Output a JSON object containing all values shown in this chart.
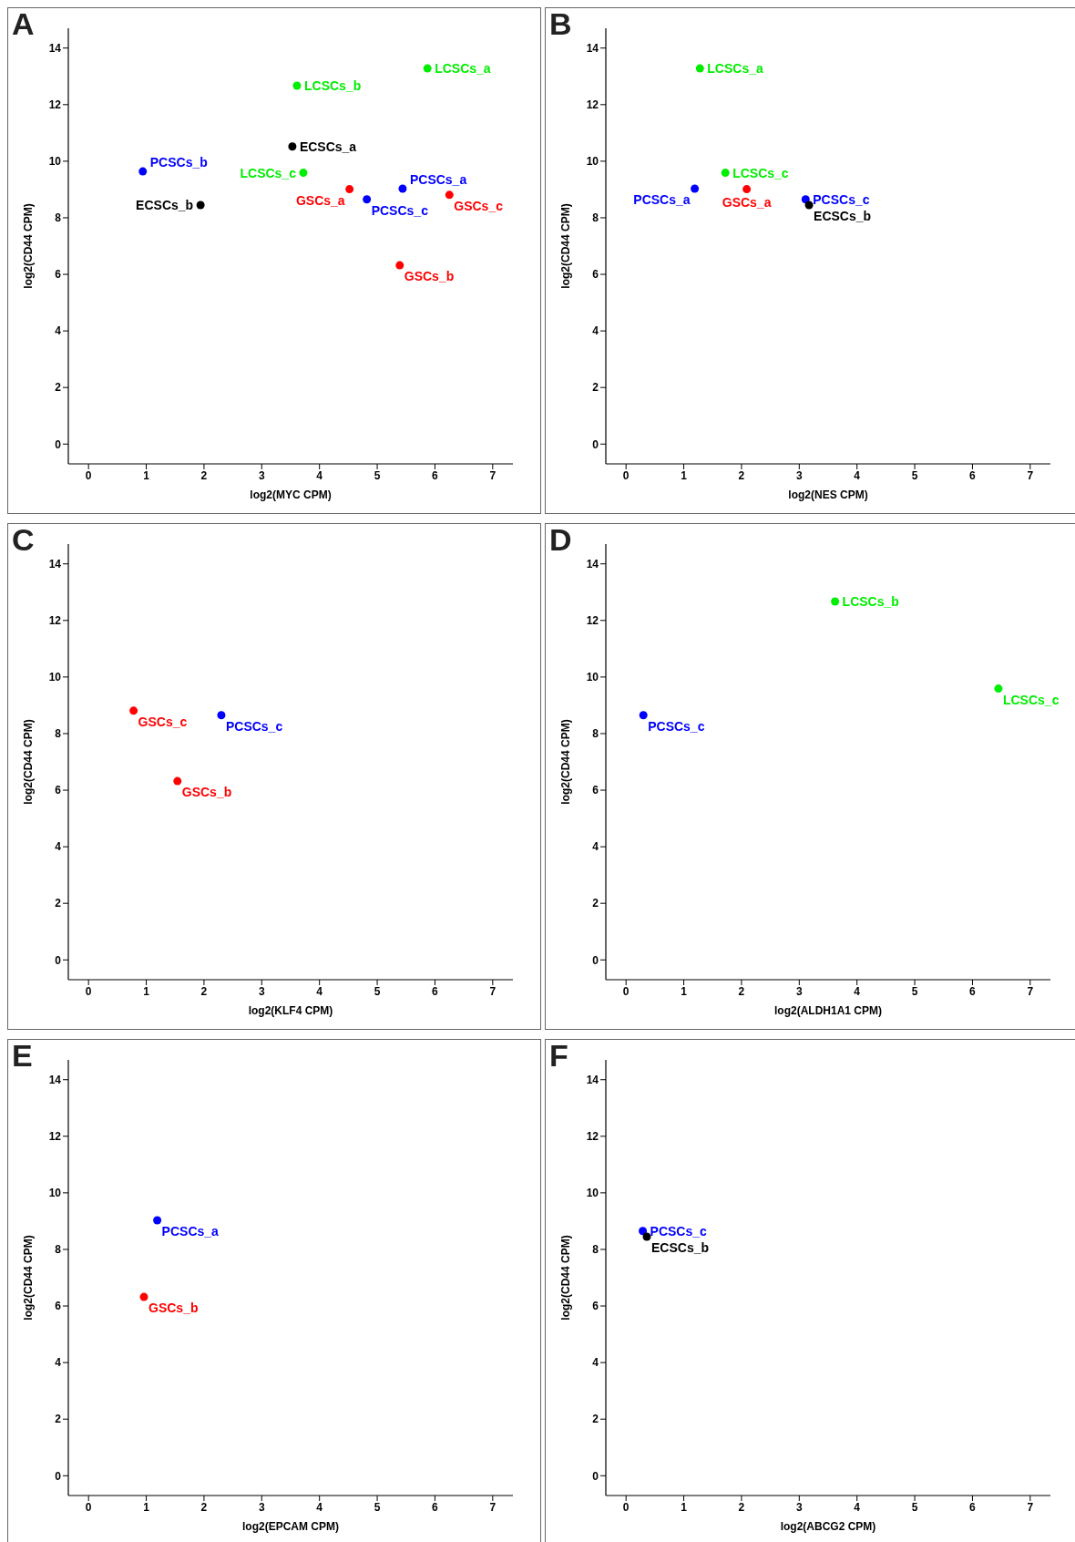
{
  "chart_data": [
    {
      "type": "scatter",
      "title": "A",
      "xlabel": "log2(MYC CPM)",
      "ylabel": "log2(CD44 CPM)",
      "xlim": [
        -0.35,
        7.35
      ],
      "ylim": [
        -0.7,
        14.7
      ],
      "xticks": [
        0,
        1,
        2,
        3,
        4,
        5,
        6,
        7
      ],
      "yticks": [
        0,
        2,
        4,
        6,
        8,
        10,
        12,
        14
      ],
      "marker": "circle",
      "series": [
        {
          "name": "LCSCs_a",
          "color": "#00ee00",
          "x": [
            5.87
          ],
          "values": [
            13.28
          ]
        },
        {
          "name": "LCSCs_b",
          "color": "#00ee00",
          "x": [
            3.61
          ],
          "values": [
            12.67
          ]
        },
        {
          "name": "ECSCs_a",
          "color": "#000000",
          "x": [
            3.53
          ],
          "values": [
            10.52
          ]
        },
        {
          "name": "PCSCs_b",
          "color": "#0000ff",
          "x": [
            0.94
          ],
          "values": [
            9.64
          ]
        },
        {
          "name": "LCSCs_c",
          "color": "#00ee00",
          "x": [
            3.72
          ],
          "values": [
            9.59
          ]
        },
        {
          "name": "GSCs_a",
          "color": "#ff0000",
          "x": [
            4.52
          ],
          "values": [
            9.01
          ]
        },
        {
          "name": "PCSCs_a",
          "color": "#0000ff",
          "x": [
            5.44
          ],
          "values": [
            9.03
          ]
        },
        {
          "name": "PCSCs_c",
          "color": "#0000ff",
          "x": [
            4.82
          ],
          "values": [
            8.65
          ]
        },
        {
          "name": "GSCs_c",
          "color": "#ff0000",
          "x": [
            6.25
          ],
          "values": [
            8.81
          ]
        },
        {
          "name": "ECSCs_b",
          "color": "#000000",
          "x": [
            1.94
          ],
          "values": [
            8.45
          ]
        },
        {
          "name": "GSCs_b",
          "color": "#ff0000",
          "x": [
            5.39
          ],
          "values": [
            6.32
          ]
        }
      ]
    },
    {
      "type": "scatter",
      "title": "B",
      "xlabel": "log2(NES CPM)",
      "ylabel": "log2(CD44 CPM)",
      "xlim": [
        -0.35,
        7.35
      ],
      "ylim": [
        -0.7,
        14.7
      ],
      "xticks": [
        0,
        1,
        2,
        3,
        4,
        5,
        6,
        7
      ],
      "yticks": [
        0,
        2,
        4,
        6,
        8,
        10,
        12,
        14
      ],
      "marker": "circle",
      "series": [
        {
          "name": "LCSCs_a",
          "color": "#00ee00",
          "x": [
            1.28
          ],
          "values": [
            13.28
          ]
        },
        {
          "name": "LCSCs_c",
          "color": "#00ee00",
          "x": [
            1.72
          ],
          "values": [
            9.59
          ]
        },
        {
          "name": "PCSCs_a",
          "color": "#0000ff",
          "x": [
            1.19
          ],
          "values": [
            9.03
          ]
        },
        {
          "name": "GSCs_a",
          "color": "#ff0000",
          "x": [
            2.09
          ],
          "values": [
            9.01
          ]
        },
        {
          "name": "PCSCs_c",
          "color": "#0000ff",
          "x": [
            3.11
          ],
          "values": [
            8.65
          ]
        },
        {
          "name": "ECSCs_b",
          "color": "#000000",
          "x": [
            3.17
          ],
          "values": [
            8.45
          ]
        }
      ]
    },
    {
      "type": "scatter",
      "title": "C",
      "xlabel": "log2(KLF4 CPM)",
      "ylabel": "log2(CD44 CPM)",
      "xlim": [
        -0.35,
        7.35
      ],
      "ylim": [
        -0.7,
        14.7
      ],
      "xticks": [
        0,
        1,
        2,
        3,
        4,
        5,
        6,
        7
      ],
      "yticks": [
        0,
        2,
        4,
        6,
        8,
        10,
        12,
        14
      ],
      "marker": "circle",
      "series": [
        {
          "name": "GSCs_c",
          "color": "#ff0000",
          "x": [
            0.78
          ],
          "values": [
            8.81
          ]
        },
        {
          "name": "PCSCs_c",
          "color": "#0000ff",
          "x": [
            2.3
          ],
          "values": [
            8.65
          ]
        },
        {
          "name": "GSCs_b",
          "color": "#ff0000",
          "x": [
            1.54
          ],
          "values": [
            6.32
          ]
        }
      ]
    },
    {
      "type": "scatter",
      "title": "D",
      "xlabel": "log2(ALDH1A1 CPM)",
      "ylabel": "log2(CD44 CPM)",
      "xlim": [
        -0.35,
        7.35
      ],
      "ylim": [
        -0.7,
        14.7
      ],
      "xticks": [
        0,
        1,
        2,
        3,
        4,
        5,
        6,
        7
      ],
      "yticks": [
        0,
        2,
        4,
        6,
        8,
        10,
        12,
        14
      ],
      "marker": "circle",
      "series": [
        {
          "name": "PCSCs_c",
          "color": "#0000ff",
          "x": [
            0.3
          ],
          "values": [
            8.65
          ]
        },
        {
          "name": "LCSCs_b",
          "color": "#00ee00",
          "x": [
            3.62
          ],
          "values": [
            12.67
          ]
        },
        {
          "name": "LCSCs_c",
          "color": "#00ee00",
          "x": [
            6.45
          ],
          "values": [
            9.59
          ]
        }
      ]
    },
    {
      "type": "scatter",
      "title": "E",
      "xlabel": "log2(EPCAM CPM)",
      "ylabel": "log2(CD44 CPM)",
      "xlim": [
        -0.35,
        7.35
      ],
      "ylim": [
        -0.7,
        14.7
      ],
      "xticks": [
        0,
        1,
        2,
        3,
        4,
        5,
        6,
        7
      ],
      "yticks": [
        0,
        2,
        4,
        6,
        8,
        10,
        12,
        14
      ],
      "marker": "circle",
      "series": [
        {
          "name": "PCSCs_a",
          "color": "#0000ff",
          "x": [
            1.19
          ],
          "values": [
            9.03
          ]
        },
        {
          "name": "GSCs_b",
          "color": "#ff0000",
          "x": [
            0.96
          ],
          "values": [
            6.32
          ]
        }
      ]
    },
    {
      "type": "scatter",
      "title": "F",
      "xlabel": "log2(ABCG2 CPM)",
      "ylabel": "log2(CD44 CPM)",
      "xlim": [
        -0.35,
        7.35
      ],
      "ylim": [
        -0.7,
        14.7
      ],
      "xticks": [
        0,
        1,
        2,
        3,
        4,
        5,
        6,
        7
      ],
      "yticks": [
        0,
        2,
        4,
        6,
        8,
        10,
        12,
        14
      ],
      "marker": "circle",
      "series": [
        {
          "name": "PCSCs_c",
          "color": "#0000ff",
          "x": [
            0.29
          ],
          "values": [
            8.65
          ]
        },
        {
          "name": "ECSCs_b",
          "color": "#000000",
          "x": [
            0.36
          ],
          "values": [
            8.45
          ]
        }
      ]
    }
  ]
}
